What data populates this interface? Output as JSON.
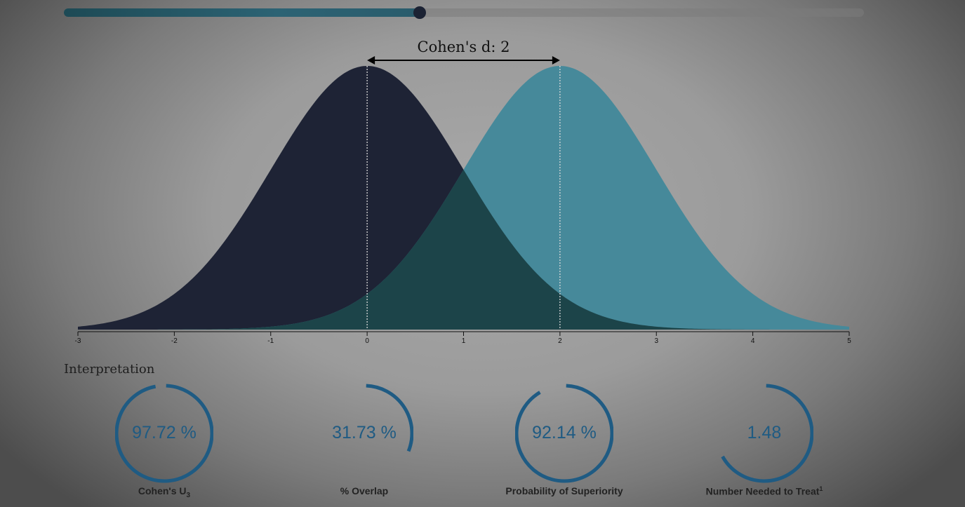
{
  "slider": {
    "value": 2,
    "max": 3
  },
  "chart_data": {
    "type": "area",
    "title": "Cohen's d: 2",
    "x_ticks": [
      "-3",
      "-2",
      "-1",
      "0",
      "1",
      "2",
      "3",
      "4",
      "5"
    ],
    "xlim": [
      -3,
      5
    ],
    "series": [
      {
        "mean": 0,
        "sd": 1,
        "color": "#1e2335"
      },
      {
        "mean": 2,
        "sd": 1,
        "color": "#46899a"
      }
    ],
    "overlap_color": "#1c4449",
    "mean_markers": [
      0,
      2
    ]
  },
  "interpretation": {
    "title": "Interpretation",
    "gauges": [
      {
        "value": "97.72 %",
        "label": "Cohen's U",
        "sub": "3",
        "fraction": 0.9772
      },
      {
        "value": "31.73 %",
        "label": "% Overlap",
        "sub": "",
        "fraction": 0.3173
      },
      {
        "value": "92.14 %",
        "label": "Probability of Superiority",
        "sub": "",
        "fraction": 0.9214
      },
      {
        "value": "1.48",
        "label": "Number Needed to Treat",
        "sup": "1",
        "fraction": 0.6757
      }
    ],
    "accent": "#1f5b83"
  }
}
